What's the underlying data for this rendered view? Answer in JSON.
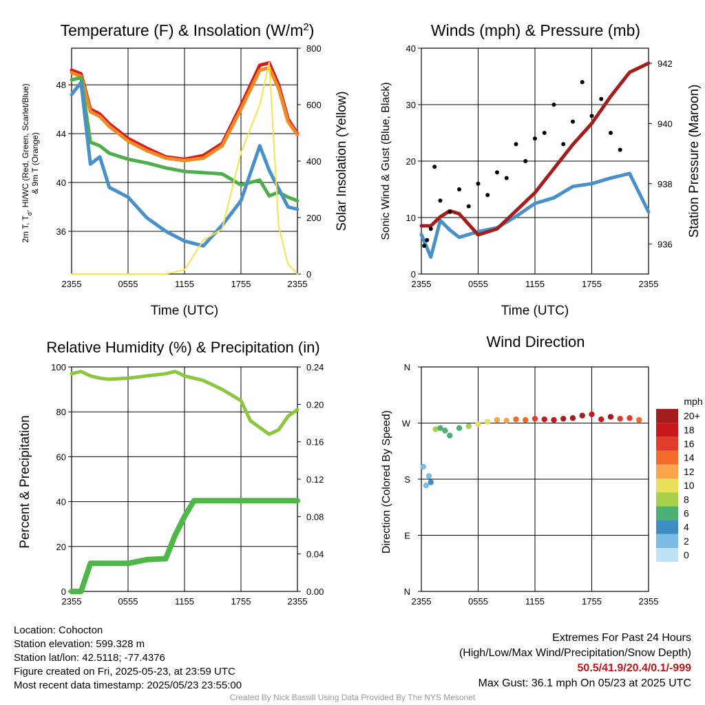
{
  "chart_data": [
    {
      "type": "line",
      "title": "Temperature (F) & Insolation (W/m²)",
      "xlabel": "Time (UTC)",
      "ylabel": "2m T, Td, HI/WC (Red, Green, Scarlet/Blue) & 9m T (Orange)",
      "ylabel_line1": "2m T, T",
      "ylabel_sub": "d",
      "ylabel_line1_rest": ", HI/WC (Red, Green, Scarlet/Blue)",
      "ylabel_line2": "& 9m T (Orange)",
      "y2label": "Solar Insolation (Yellow)",
      "x_ticks": [
        "2355",
        "0555",
        "1155",
        "1755",
        "2355"
      ],
      "ylim": [
        32.5,
        51
      ],
      "y_ticks": [
        36,
        40,
        44,
        48
      ],
      "y2lim": [
        0,
        800
      ],
      "y2_ticks": [
        0,
        200,
        400,
        600,
        800
      ],
      "grid": true,
      "x": [
        0,
        1,
        2,
        3,
        4,
        6,
        8,
        10,
        12,
        14,
        16,
        18,
        20,
        21,
        22,
        23,
        24
      ],
      "series": [
        {
          "values": [
            49.2,
            48.9,
            46.0,
            45.6,
            44.8,
            43.6,
            42.8,
            42.1,
            41.9,
            42.2,
            43.2,
            46.3,
            49.6,
            49.8,
            48.0,
            45.2,
            44.0
          ],
          "color": "#d7191c",
          "axis": "left"
        },
        {
          "values": [
            49.0,
            48.7,
            45.8,
            45.4,
            44.6,
            43.4,
            42.6,
            42.0,
            41.8,
            42.0,
            43.0,
            46.0,
            49.2,
            49.4,
            47.7,
            45.0,
            43.9
          ],
          "color": "#f08a24",
          "axis": "left"
        },
        {
          "values": [
            48.4,
            48.6,
            43.3,
            43.0,
            42.4,
            41.9,
            41.6,
            41.2,
            40.9,
            40.8,
            40.7,
            39.8,
            40.2,
            38.9,
            39.2,
            38.8,
            38.5
          ],
          "color": "#4daf4a",
          "axis": "left"
        },
        {
          "values": [
            47.2,
            48.2,
            41.5,
            42.1,
            39.6,
            38.8,
            37.1,
            36.0,
            35.2,
            34.8,
            36.5,
            38.5,
            43.0,
            41.0,
            39.5,
            38.0,
            37.8
          ],
          "color": "#4a90c8",
          "axis": "left"
        },
        {
          "values": [
            0,
            0,
            0,
            0,
            0,
            0,
            0,
            0,
            15,
            120,
            160,
            430,
            600,
            750,
            170,
            35,
            0
          ],
          "color": "#f6e34b",
          "axis": "right"
        }
      ]
    },
    {
      "type": "line",
      "title": "Winds (mph) & Pressure (mb)",
      "xlabel": "Time (UTC)",
      "ylabel": "Sonic Wind & Gust (Blue, Black)",
      "y2label": "Station Pressure (Maroon)",
      "x_ticks": [
        "2355",
        "0555",
        "1155",
        "1755",
        "2355"
      ],
      "ylim": [
        0,
        40
      ],
      "y_ticks": [
        0,
        10,
        20,
        30,
        40
      ],
      "y2lim": [
        935,
        942.5
      ],
      "y2_ticks": [
        936,
        938,
        940,
        942
      ],
      "grid": true,
      "x": [
        0,
        1,
        2,
        3,
        4,
        6,
        8,
        10,
        12,
        14,
        16,
        18,
        20,
        22,
        24
      ],
      "series": [
        {
          "values": [
            7.0,
            3.0,
            9.5,
            7.8,
            6.5,
            7.5,
            8.2,
            10.2,
            12.5,
            13.5,
            15.5,
            16.0,
            17.0,
            17.8,
            11.0
          ],
          "color": "#4a90c8",
          "axis": "left"
        },
        {
          "values": [
            936.6,
            936.6,
            936.9,
            937.1,
            937.0,
            936.3,
            936.5,
            937.1,
            937.7,
            938.5,
            939.3,
            940.0,
            940.9,
            941.7,
            942.0
          ],
          "color": "#a51c1c",
          "axis": "right"
        }
      ],
      "gust_points": {
        "values": [
          5,
          6,
          8,
          19,
          13,
          11,
          15,
          12,
          16,
          14,
          18,
          17,
          23,
          20,
          24,
          25,
          30,
          23,
          27,
          34,
          28,
          31,
          25,
          22
        ],
        "x": [
          0.3,
          0.6,
          1.0,
          1.4,
          2.0,
          3.0,
          4.0,
          5.0,
          6.0,
          7.0,
          8.0,
          9.0,
          10.0,
          11.0,
          12.0,
          13.0,
          14.0,
          15.0,
          16.0,
          17.0,
          18.0,
          19.0,
          20.0,
          21.0
        ],
        "color": "#000000"
      }
    },
    {
      "type": "line",
      "title": "Relative Humidity (%) & Precipitation (in)",
      "xlabel": "",
      "ylabel": "Percent & Precipitation",
      "x_ticks": [
        "2355",
        "0555",
        "1155",
        "1755",
        "2355"
      ],
      "ylim": [
        0,
        100
      ],
      "y_ticks": [
        0,
        20,
        40,
        60,
        80,
        100
      ],
      "y2lim": [
        0,
        0.24
      ],
      "y2_ticks": [
        "0.00",
        "0.04",
        "0.08",
        "0.12",
        "0.16",
        "0.20",
        "0.24"
      ],
      "grid": true,
      "x": [
        0,
        1,
        2,
        3,
        4,
        6,
        8,
        10,
        11,
        12,
        13,
        14,
        15,
        16,
        18,
        19,
        20,
        21,
        22,
        23,
        24
      ],
      "series": [
        {
          "values": [
            97,
            98,
            96,
            95,
            94.5,
            95,
            96,
            97,
            98,
            96,
            95,
            94,
            92,
            90,
            85,
            76,
            73,
            70,
            72,
            78,
            81
          ],
          "color": "#8cc63f",
          "axis": "left"
        },
        {
          "values": [
            0.0,
            0.0,
            0.03,
            0.03,
            0.03,
            0.03,
            0.034,
            0.035,
            0.06,
            0.08,
            0.097,
            0.097,
            0.097,
            0.097,
            0.097,
            0.097,
            0.097,
            0.097,
            0.097,
            0.097,
            0.097
          ],
          "color": "#4db848",
          "axis": "right"
        }
      ]
    },
    {
      "type": "scatter",
      "title": "Wind Direction",
      "ylabel": "Direction (Colored By Speed)",
      "x_ticks": [
        "2355",
        "0555",
        "1155",
        "1755",
        "2355"
      ],
      "y_ticks": [
        "N",
        "E",
        "S",
        "W",
        "N"
      ],
      "ylim": [
        0,
        360
      ],
      "grid": true,
      "x": [
        0.2,
        0.5,
        0.8,
        1.0,
        1.5,
        2.0,
        2.5,
        3.0,
        4.0,
        5.0,
        6.0,
        7.0,
        8.0,
        9.0,
        10.0,
        11.0,
        12.0,
        13.0,
        14.0,
        15.0,
        16.0,
        17.0,
        18.0,
        19.0,
        20.0,
        21.0,
        22.0,
        23.0
      ],
      "values": [
        200,
        170,
        185,
        175,
        260,
        262,
        258,
        250,
        262,
        265,
        268,
        272,
        275,
        274,
        276,
        275,
        277,
        276,
        275,
        277,
        278,
        282,
        284,
        276,
        280,
        277,
        278,
        275
      ],
      "speeds": [
        3,
        2,
        3,
        4,
        9,
        7,
        6,
        6,
        7,
        9,
        10,
        11,
        12,
        13,
        14,
        15,
        17,
        18,
        19,
        20,
        20,
        21,
        19,
        18,
        20,
        17,
        16,
        15
      ],
      "legend_title": "mph",
      "legend_labels": [
        "20+",
        "18",
        "16",
        "14",
        "12",
        "10",
        "8",
        "6",
        "4",
        "2",
        "0"
      ],
      "legend_colors": [
        "#a51c1c",
        "#c8181e",
        "#e23c2a",
        "#f26b2b",
        "#f9a64a",
        "#e8e05a",
        "#a6cf4a",
        "#4caf73",
        "#3e8ec4",
        "#7cbbe3",
        "#bfe3f5"
      ]
    }
  ],
  "footer": {
    "location": "Location: Cohocton",
    "elevation": "Station elevation: 599.328 m",
    "latlon": "Station lat/lon: 42.5118; -77.4376",
    "created": "Figure created on Fri, 2025-05-23, at 23:59 UTC",
    "recent": "Most recent data timestamp: 2025/05/23 23:55:00",
    "extremes_title": "Extremes For Past 24 Hours",
    "extremes_sub": "(High/Low/Max Wind/Precipitation/Snow Depth)",
    "extremes_values": "50.5/41.9/20.4/0.1/-999",
    "max_gust": "Max Gust: 36.1 mph On 05/23 at 2025 UTC",
    "credit": "Created By Nick Bassill Using Data Provided By The NYS Mesonet"
  }
}
